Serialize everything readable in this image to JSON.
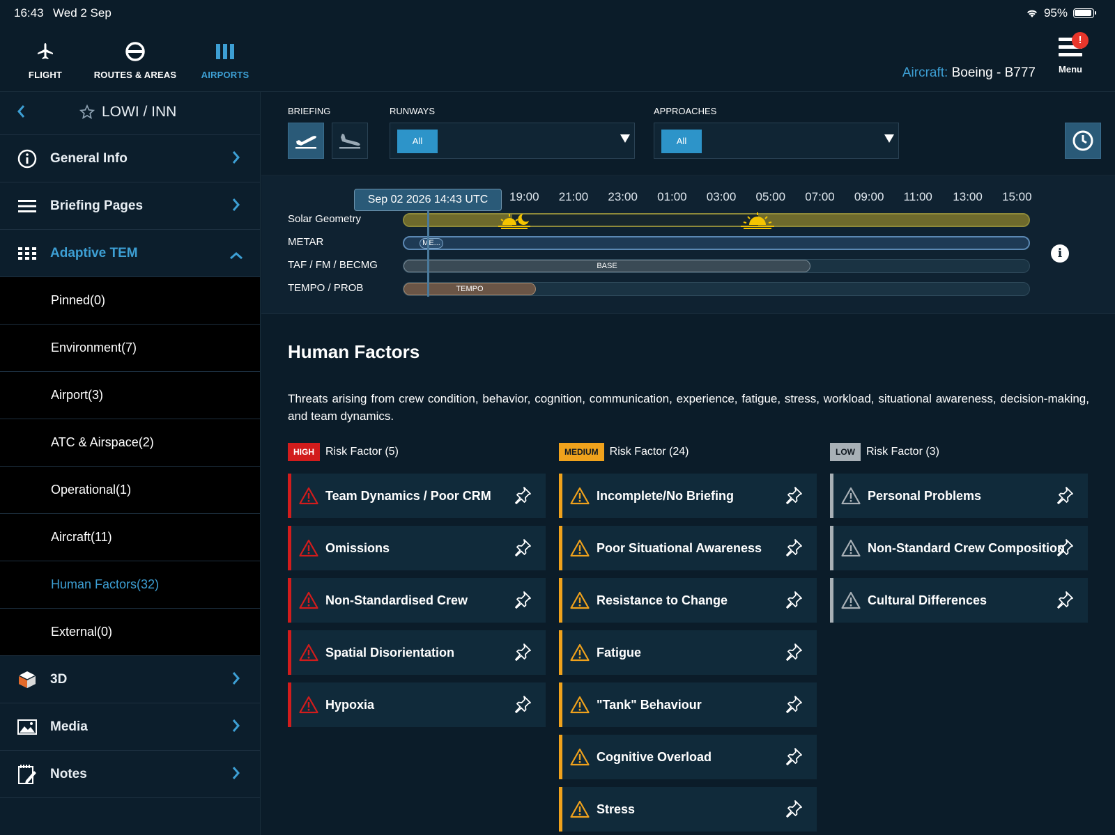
{
  "status": {
    "time": "16:43",
    "date": "Wed 2 Sep",
    "battery": "95%"
  },
  "nav": {
    "tabs": [
      {
        "label": "FLIGHT",
        "icon": "plane-icon"
      },
      {
        "label": "ROUTES & AREAS",
        "icon": "route-icon"
      },
      {
        "label": "AIRPORTS",
        "icon": "airports-icon",
        "active": true
      }
    ],
    "aircraft_label": "Aircraft:",
    "aircraft_value": "Boeing - B777",
    "menu_label": "Menu",
    "menu_badge": "!"
  },
  "sidebar": {
    "airport": "LOWI / INN",
    "items": [
      {
        "label": "General Info",
        "icon": "info-icon"
      },
      {
        "label": "Briefing Pages",
        "icon": "list-icon"
      },
      {
        "label": "Adaptive TEM",
        "icon": "grid-icon",
        "expanded": true
      }
    ],
    "sub_items": [
      "Pinned(0)",
      "Environment(7)",
      "Airport(3)",
      "ATC & Airspace(2)",
      "Operational(1)",
      "Aircraft(11)",
      "Human Factors(32)",
      "External(0)"
    ],
    "active_sub": "Human Factors(32)",
    "bottom_items": [
      {
        "label": "3D",
        "icon": "cube-icon"
      },
      {
        "label": "Media",
        "icon": "image-icon"
      },
      {
        "label": "Notes",
        "icon": "notes-icon"
      }
    ]
  },
  "controls": {
    "briefing_label": "BRIEFING",
    "runways_label": "RUNWAYS",
    "runways_value": "All",
    "approaches_label": "APPROACHES",
    "approaches_value": "All"
  },
  "timeline": {
    "now": "Sep 02 2026 14:43 UTC",
    "ticks": [
      "19:00",
      "21:00",
      "23:00",
      "01:00",
      "03:00",
      "05:00",
      "07:00",
      "09:00",
      "11:00",
      "13:00",
      "15:00"
    ],
    "rows": [
      "Solar Geometry",
      "METAR",
      "TAF / FM / BECMG",
      "TEMPO / PROB"
    ],
    "metar_chip": "ME...",
    "taf_chip": "BASE",
    "tempo_chip": "TEMPO"
  },
  "content": {
    "title": "Human Factors",
    "description": "Threats arising from crew condition, behavior, cognition, communication, experience, fatigue, stress, workload, situational awareness, decision-making, and team dynamics."
  },
  "risk": {
    "high": {
      "tag": "HIGH",
      "label": "Risk Factor (5)",
      "color": "#d21c1c",
      "items": [
        "Team Dynamics / Poor CRM",
        "Omissions",
        "Non-Standardised Crew",
        "Spatial Disorientation",
        "Hypoxia"
      ]
    },
    "medium": {
      "tag": "MEDIUM",
      "label": "Risk Factor (24)",
      "color": "#f0a21c",
      "items": [
        "Incomplete/No Briefing",
        "Poor Situational Awareness",
        "Resistance to Change",
        "Fatigue",
        "\"Tank\" Behaviour",
        "Cognitive Overload",
        "Stress"
      ]
    },
    "low": {
      "tag": "LOW",
      "label": "Risk Factor (3)",
      "color": "#a8b0b6",
      "items": [
        "Personal Problems",
        "Non-Standard Crew Composition",
        "Cultural Differences"
      ]
    }
  }
}
